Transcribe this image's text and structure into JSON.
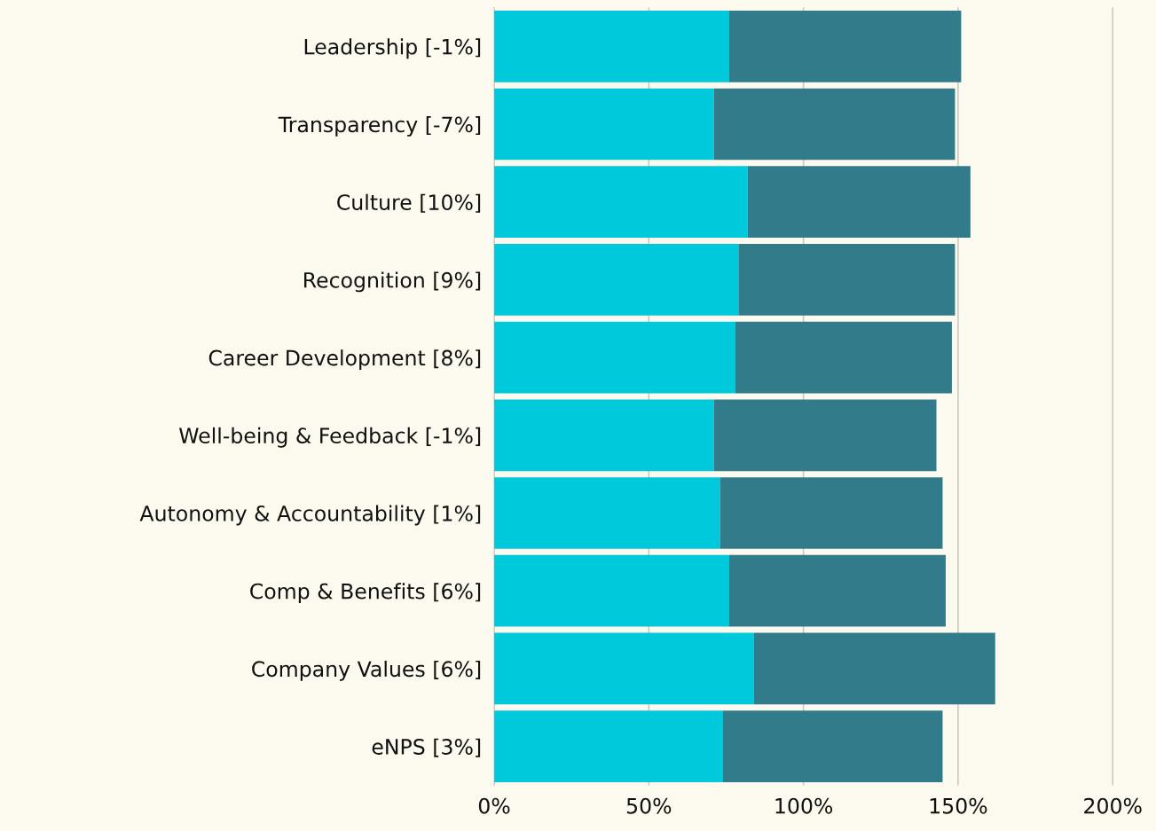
{
  "chart_data": {
    "type": "bar",
    "orientation": "horizontal",
    "stacked": true,
    "categories": [
      "Leadership [-1%]",
      "Transparency [-7%]",
      "Culture [10%]",
      "Recognition [9%]",
      "Career Development [8%]",
      "Well-being & Feedback [-1%]",
      "Autonomy & Accountability [1%]",
      "Comp & Benefits [6%]",
      "Company Values [6%]",
      "eNPS [3%]"
    ],
    "series": [
      {
        "color": "#00c9db",
        "values": [
          76,
          71,
          82,
          79,
          78,
          71,
          73,
          76,
          84,
          74
        ]
      },
      {
        "color": "#327b8b",
        "values": [
          75,
          78,
          72,
          70,
          70,
          72,
          72,
          70,
          78,
          71
        ]
      }
    ],
    "xlim": [
      0,
      214
    ],
    "xticks": [
      {
        "value": 0,
        "label": "0%"
      },
      {
        "value": 50,
        "label": "50%"
      },
      {
        "value": 100,
        "label": "100%"
      },
      {
        "value": 150,
        "label": "150%"
      },
      {
        "value": 200,
        "label": "200%"
      }
    ],
    "grid": "x"
  }
}
